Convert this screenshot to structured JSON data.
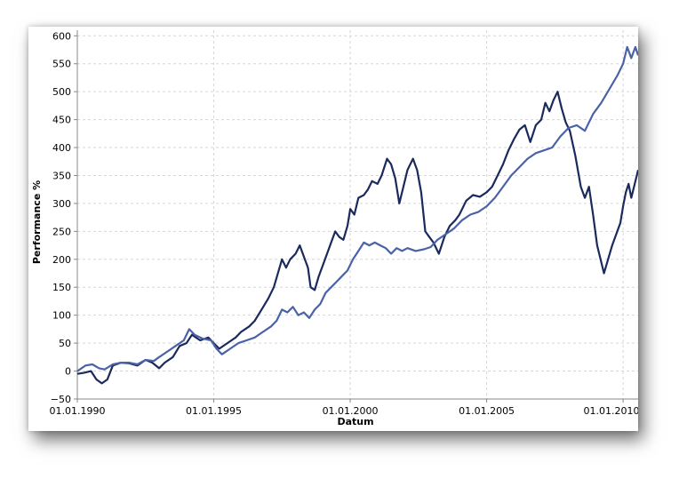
{
  "chart_data": {
    "type": "line",
    "title": "",
    "xlabel": "Datum",
    "ylabel": "Performance %",
    "xlim": [
      1990.0,
      2010.55
    ],
    "ylim": [
      -50,
      610
    ],
    "grid": true,
    "x_ticks": [
      {
        "value": 1990,
        "label": "01.01.1990"
      },
      {
        "value": 1995,
        "label": "01.01.1995"
      },
      {
        "value": 2000,
        "label": "01.01.2000"
      },
      {
        "value": 2005,
        "label": "01.01.2005"
      },
      {
        "value": 2010,
        "label": "01.01.2010"
      }
    ],
    "y_ticks": [
      -50,
      0,
      50,
      100,
      150,
      200,
      250,
      300,
      350,
      400,
      450,
      500,
      550,
      600
    ],
    "series": [
      {
        "color": "#1b2a5c",
        "points": [
          [
            1990.0,
            -5
          ],
          [
            1990.25,
            -3
          ],
          [
            1990.5,
            0
          ],
          [
            1990.7,
            -15
          ],
          [
            1990.9,
            -22
          ],
          [
            1991.1,
            -15
          ],
          [
            1991.3,
            10
          ],
          [
            1991.6,
            15
          ],
          [
            1991.9,
            14
          ],
          [
            1992.2,
            10
          ],
          [
            1992.5,
            20
          ],
          [
            1992.75,
            15
          ],
          [
            1993.0,
            5
          ],
          [
            1993.2,
            15
          ],
          [
            1993.5,
            25
          ],
          [
            1993.75,
            45
          ],
          [
            1994.0,
            50
          ],
          [
            1994.2,
            65
          ],
          [
            1994.5,
            55
          ],
          [
            1994.8,
            60
          ],
          [
            1995.0,
            50
          ],
          [
            1995.2,
            40
          ],
          [
            1995.5,
            50
          ],
          [
            1995.8,
            60
          ],
          [
            1996.0,
            70
          ],
          [
            1996.3,
            80
          ],
          [
            1996.5,
            90
          ],
          [
            1996.75,
            110
          ],
          [
            1997.0,
            130
          ],
          [
            1997.2,
            150
          ],
          [
            1997.35,
            175
          ],
          [
            1997.5,
            200
          ],
          [
            1997.65,
            185
          ],
          [
            1997.8,
            200
          ],
          [
            1998.0,
            210
          ],
          [
            1998.15,
            225
          ],
          [
            1998.3,
            205
          ],
          [
            1998.45,
            185
          ],
          [
            1998.55,
            150
          ],
          [
            1998.7,
            145
          ],
          [
            1998.85,
            170
          ],
          [
            1999.0,
            190
          ],
          [
            1999.15,
            210
          ],
          [
            1999.3,
            230
          ],
          [
            1999.45,
            250
          ],
          [
            1999.6,
            240
          ],
          [
            1999.75,
            235
          ],
          [
            1999.9,
            260
          ],
          [
            2000.0,
            290
          ],
          [
            2000.15,
            280
          ],
          [
            2000.3,
            310
          ],
          [
            2000.5,
            315
          ],
          [
            2000.65,
            325
          ],
          [
            2000.8,
            340
          ],
          [
            2001.0,
            335
          ],
          [
            2001.15,
            350
          ],
          [
            2001.35,
            380
          ],
          [
            2001.5,
            370
          ],
          [
            2001.65,
            345
          ],
          [
            2001.8,
            300
          ],
          [
            2001.95,
            330
          ],
          [
            2002.1,
            360
          ],
          [
            2002.3,
            380
          ],
          [
            2002.45,
            360
          ],
          [
            2002.6,
            320
          ],
          [
            2002.75,
            250
          ],
          [
            2002.9,
            240
          ],
          [
            2003.05,
            230
          ],
          [
            2003.25,
            210
          ],
          [
            2003.45,
            240
          ],
          [
            2003.65,
            260
          ],
          [
            2003.85,
            270
          ],
          [
            2004.0,
            280
          ],
          [
            2004.25,
            305
          ],
          [
            2004.5,
            315
          ],
          [
            2004.75,
            312
          ],
          [
            2005.0,
            320
          ],
          [
            2005.2,
            330
          ],
          [
            2005.4,
            350
          ],
          [
            2005.6,
            370
          ],
          [
            2005.8,
            395
          ],
          [
            2006.0,
            415
          ],
          [
            2006.2,
            432
          ],
          [
            2006.4,
            440
          ],
          [
            2006.6,
            410
          ],
          [
            2006.8,
            440
          ],
          [
            2007.0,
            450
          ],
          [
            2007.15,
            480
          ],
          [
            2007.3,
            465
          ],
          [
            2007.45,
            485
          ],
          [
            2007.6,
            500
          ],
          [
            2007.75,
            470
          ],
          [
            2007.9,
            445
          ],
          [
            2008.05,
            430
          ],
          [
            2008.25,
            385
          ],
          [
            2008.45,
            330
          ],
          [
            2008.6,
            310
          ],
          [
            2008.75,
            330
          ],
          [
            2008.9,
            280
          ],
          [
            2009.05,
            225
          ],
          [
            2009.2,
            195
          ],
          [
            2009.3,
            175
          ],
          [
            2009.45,
            200
          ],
          [
            2009.6,
            225
          ],
          [
            2009.75,
            245
          ],
          [
            2009.9,
            265
          ],
          [
            2010.0,
            295
          ],
          [
            2010.1,
            320
          ],
          [
            2010.2,
            335
          ],
          [
            2010.3,
            310
          ],
          [
            2010.4,
            330
          ],
          [
            2010.5,
            350
          ],
          [
            2010.55,
            360
          ]
        ]
      },
      {
        "color": "#4a62a6",
        "points": [
          [
            1990.0,
            0
          ],
          [
            1990.3,
            10
          ],
          [
            1990.55,
            12
          ],
          [
            1990.8,
            5
          ],
          [
            1991.0,
            3
          ],
          [
            1991.3,
            12
          ],
          [
            1991.6,
            15
          ],
          [
            1991.9,
            15
          ],
          [
            1992.2,
            12
          ],
          [
            1992.5,
            20
          ],
          [
            1992.8,
            18
          ],
          [
            1993.0,
            25
          ],
          [
            1993.3,
            35
          ],
          [
            1993.6,
            45
          ],
          [
            1993.9,
            55
          ],
          [
            1994.1,
            75
          ],
          [
            1994.3,
            65
          ],
          [
            1994.6,
            58
          ],
          [
            1994.9,
            55
          ],
          [
            1995.1,
            40
          ],
          [
            1995.3,
            30
          ],
          [
            1995.6,
            40
          ],
          [
            1995.9,
            50
          ],
          [
            1996.2,
            55
          ],
          [
            1996.5,
            60
          ],
          [
            1996.8,
            70
          ],
          [
            1997.1,
            80
          ],
          [
            1997.3,
            90
          ],
          [
            1997.5,
            110
          ],
          [
            1997.7,
            105
          ],
          [
            1997.9,
            115
          ],
          [
            1998.1,
            100
          ],
          [
            1998.3,
            105
          ],
          [
            1998.5,
            95
          ],
          [
            1998.7,
            110
          ],
          [
            1998.9,
            120
          ],
          [
            1999.1,
            140
          ],
          [
            1999.3,
            150
          ],
          [
            1999.5,
            160
          ],
          [
            1999.7,
            170
          ],
          [
            1999.9,
            180
          ],
          [
            2000.1,
            200
          ],
          [
            2000.3,
            215
          ],
          [
            2000.5,
            230
          ],
          [
            2000.7,
            225
          ],
          [
            2000.9,
            230
          ],
          [
            2001.1,
            225
          ],
          [
            2001.3,
            220
          ],
          [
            2001.5,
            210
          ],
          [
            2001.7,
            220
          ],
          [
            2001.9,
            215
          ],
          [
            2002.1,
            220
          ],
          [
            2002.4,
            215
          ],
          [
            2002.7,
            218
          ],
          [
            2002.95,
            222
          ],
          [
            2003.2,
            235
          ],
          [
            2003.5,
            245
          ],
          [
            2003.8,
            255
          ],
          [
            2004.1,
            270
          ],
          [
            2004.4,
            280
          ],
          [
            2004.7,
            285
          ],
          [
            2005.0,
            295
          ],
          [
            2005.3,
            310
          ],
          [
            2005.6,
            330
          ],
          [
            2005.9,
            350
          ],
          [
            2006.2,
            365
          ],
          [
            2006.5,
            380
          ],
          [
            2006.8,
            390
          ],
          [
            2007.1,
            395
          ],
          [
            2007.4,
            400
          ],
          [
            2007.7,
            420
          ],
          [
            2008.0,
            435
          ],
          [
            2008.3,
            440
          ],
          [
            2008.6,
            430
          ],
          [
            2008.9,
            460
          ],
          [
            2009.2,
            480
          ],
          [
            2009.5,
            505
          ],
          [
            2009.8,
            530
          ],
          [
            2010.0,
            550
          ],
          [
            2010.15,
            580
          ],
          [
            2010.3,
            560
          ],
          [
            2010.45,
            580
          ],
          [
            2010.55,
            565
          ]
        ]
      }
    ]
  }
}
